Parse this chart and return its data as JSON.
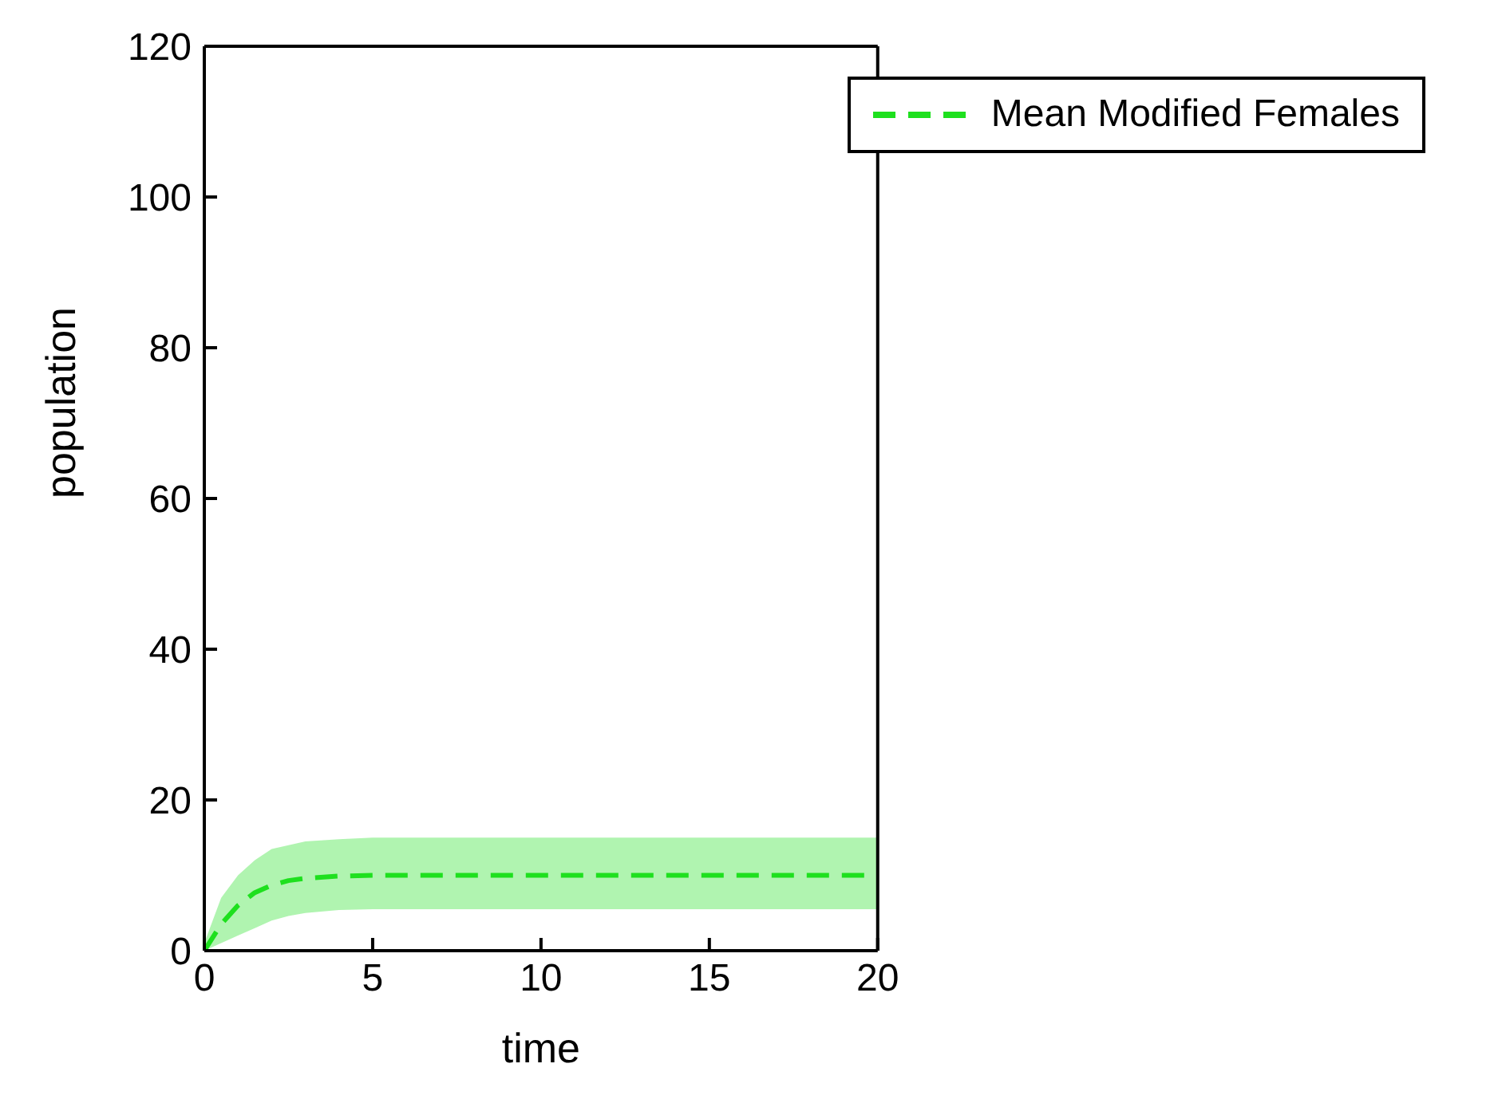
{
  "chart_data": {
    "type": "line",
    "xlabel": "time",
    "ylabel": "population",
    "xlim": [
      0,
      20
    ],
    "xticks": [
      0,
      5,
      10,
      15,
      20
    ],
    "ylim": [
      0,
      120
    ],
    "yticks": [
      0,
      20,
      40,
      60,
      80,
      100,
      120
    ],
    "grid": false,
    "legend": "top right",
    "marker": "none",
    "line_style": "dashed",
    "series": [
      {
        "name": "Mean Modified Females",
        "color": "#1ee01e",
        "x": [
          0,
          0.5,
          1,
          1.5,
          2,
          2.5,
          3,
          4,
          5,
          10,
          15,
          20
        ],
        "values": [
          0,
          3.5,
          6,
          7.7,
          8.7,
          9.3,
          9.6,
          9.9,
          10,
          10,
          10,
          10
        ],
        "lower": [
          0,
          1,
          2,
          3,
          4,
          4.6,
          5,
          5.4,
          5.5,
          5.5,
          5.5,
          5.5
        ],
        "upper": [
          1,
          7,
          10,
          12,
          13.5,
          14,
          14.5,
          14.8,
          15,
          15,
          15,
          15
        ]
      }
    ]
  }
}
